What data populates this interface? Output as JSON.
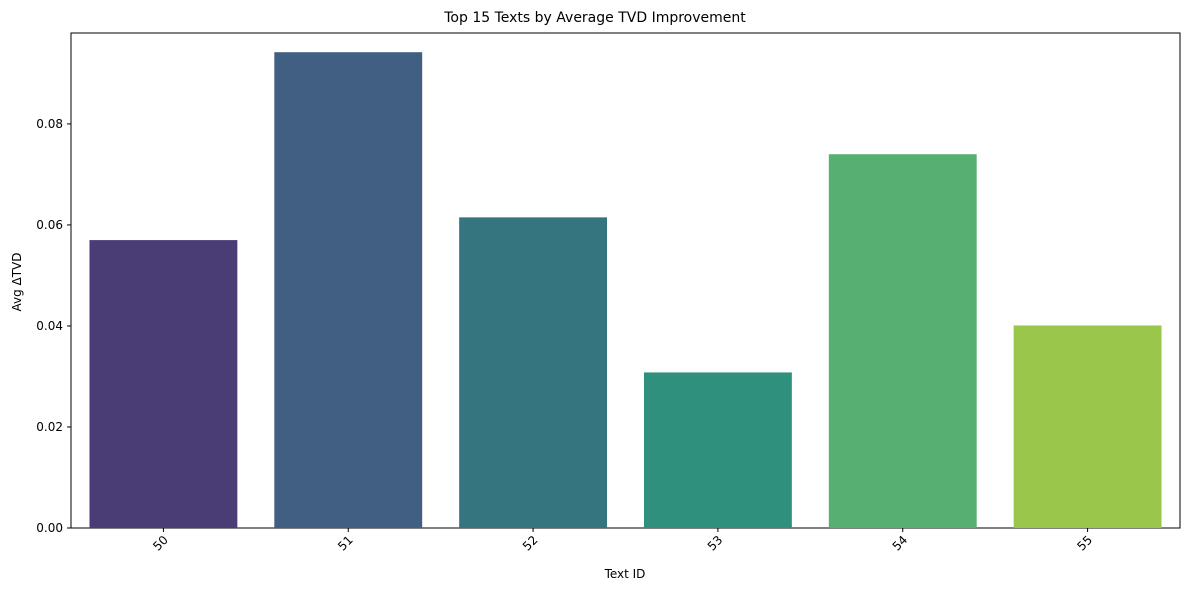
{
  "chart_data": {
    "type": "bar",
    "title": "Top 15 Texts by Average TVD Improvement",
    "xlabel": "Text ID",
    "ylabel": "Avg ΔTVD",
    "categories": [
      "50",
      "51",
      "52",
      "53",
      "54",
      "55"
    ],
    "values": [
      0.057,
      0.0942,
      0.0615,
      0.0308,
      0.074,
      0.0401
    ],
    "colors": [
      "#4a3c74",
      "#415f82",
      "#357580",
      "#30907e",
      "#58af72",
      "#9ac64c"
    ],
    "ylim": [
      0,
      0.098
    ],
    "yticks": [
      0.0,
      0.02,
      0.04,
      0.06,
      0.08
    ],
    "ytick_labels": [
      "0.00",
      "0.02",
      "0.04",
      "0.06",
      "0.08"
    ],
    "xtick_rotation": -45,
    "grid": false,
    "legend": false
  }
}
